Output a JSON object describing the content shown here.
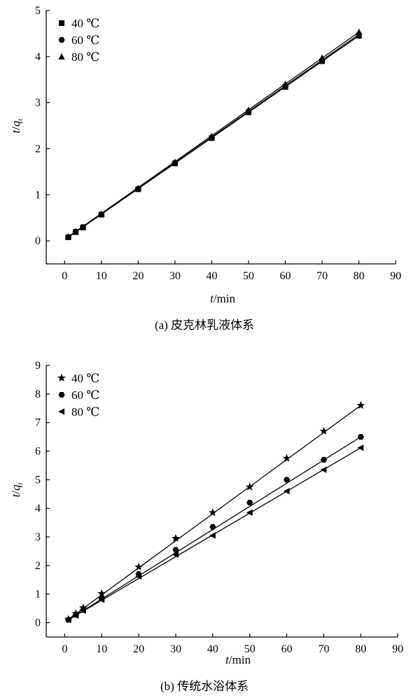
{
  "chart_data": [
    {
      "type": "line",
      "caption": "(a) 皮克林乳液体系",
      "x_label": {
        "var": "t",
        "rest": "/min"
      },
      "y_label": {
        "var": "t",
        "slash": "/",
        "q": "q",
        "sub": "t"
      },
      "xlim": [
        -5,
        90
      ],
      "ylim": [
        -0.5,
        5
      ],
      "xticks": [
        0,
        10,
        20,
        30,
        40,
        50,
        60,
        70,
        80,
        90
      ],
      "yticks": [
        0,
        1,
        2,
        3,
        4,
        5
      ],
      "legend_position": "top-left",
      "series": [
        {
          "name": "40 ℃",
          "marker": "square",
          "x": [
            1,
            3,
            5,
            10,
            20,
            30,
            40,
            50,
            60,
            70,
            80
          ],
          "y": [
            0.08,
            0.19,
            0.29,
            0.57,
            1.12,
            1.68,
            2.23,
            2.79,
            3.34,
            3.9,
            4.45
          ]
        },
        {
          "name": "60 ℃",
          "marker": "circle",
          "x": [
            1,
            3,
            5,
            10,
            20,
            30,
            40,
            50,
            60,
            70,
            80
          ],
          "y": [
            0.08,
            0.2,
            0.3,
            0.57,
            1.13,
            1.69,
            2.24,
            2.8,
            3.36,
            3.92,
            4.48
          ]
        },
        {
          "name": "80 ℃",
          "marker": "triangle-up",
          "x": [
            1,
            3,
            5,
            10,
            20,
            30,
            40,
            50,
            60,
            70,
            80
          ],
          "y": [
            0.09,
            0.2,
            0.3,
            0.58,
            1.14,
            1.71,
            2.27,
            2.84,
            3.4,
            3.97,
            4.53
          ]
        }
      ]
    },
    {
      "type": "line",
      "caption": "(b) 传统水浴体系",
      "x_label": {
        "var": "t",
        "rest": "/min"
      },
      "y_label": {
        "var": "t",
        "slash": "/",
        "q": "q",
        "sub": "t"
      },
      "xlim": [
        -5,
        90
      ],
      "ylim": [
        -0.5,
        9
      ],
      "xticks": [
        0,
        10,
        20,
        30,
        40,
        50,
        60,
        70,
        80,
        90
      ],
      "yticks": [
        0,
        1,
        2,
        3,
        4,
        5,
        6,
        7,
        8,
        9
      ],
      "legend_position": "top-left",
      "series": [
        {
          "name": "40 ℃",
          "marker": "star",
          "x": [
            1,
            3,
            5,
            10,
            20,
            30,
            40,
            50,
            60,
            70,
            80
          ],
          "y": [
            0.12,
            0.32,
            0.52,
            1.02,
            1.95,
            2.95,
            3.85,
            4.75,
            5.75,
            6.7,
            7.6
          ]
        },
        {
          "name": "60 ℃",
          "marker": "circle",
          "x": [
            1,
            3,
            5,
            10,
            20,
            30,
            40,
            50,
            60,
            70,
            80
          ],
          "y": [
            0.1,
            0.27,
            0.45,
            0.85,
            1.7,
            2.55,
            3.35,
            4.2,
            5.0,
            5.7,
            6.5
          ]
        },
        {
          "name": "80 ℃",
          "marker": "triangle-left",
          "x": [
            1,
            3,
            5,
            10,
            20,
            30,
            40,
            50,
            60,
            70,
            80
          ],
          "y": [
            0.1,
            0.25,
            0.42,
            0.8,
            1.62,
            2.38,
            3.05,
            3.85,
            4.6,
            5.35,
            6.12
          ]
        }
      ]
    }
  ]
}
